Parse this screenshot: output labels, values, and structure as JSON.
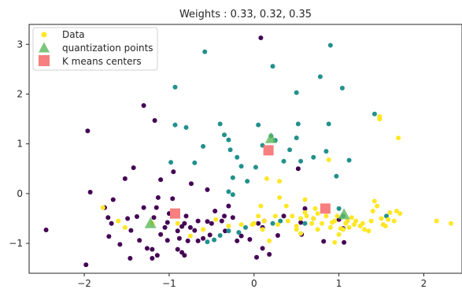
{
  "chart_data": {
    "type": "scatter",
    "title": "Weights : 0.33, 0.32, 0.35",
    "xlabel": "",
    "ylabel": "",
    "xlim": [
      -2.65,
      2.45
    ],
    "ylim": [
      -1.6,
      3.4
    ],
    "x_ticks": [
      -2,
      -1,
      0,
      1,
      2
    ],
    "x_tick_labels": [
      "−2",
      "−1",
      "0",
      "1",
      "2"
    ],
    "y_ticks": [
      -1,
      0,
      1,
      2,
      3
    ],
    "y_tick_labels": [
      "−1",
      "0",
      "1",
      "2",
      "3"
    ],
    "grid": false,
    "legend_position": "top-left",
    "colors": {
      "cluster_purple": "#440154",
      "cluster_teal": "#21918c",
      "cluster_yellow": "#fde725",
      "quantization": "#5cb85c",
      "kmeans": "#f77f7f",
      "axes": "#262626"
    },
    "series": [
      {
        "name": "Data",
        "marker": "circle",
        "groups": [
          {
            "color": "#440154",
            "points": [
              [
                -2.45,
                -0.73
              ],
              [
                -1.96,
                1.26
              ],
              [
                -1.98,
                -1.43
              ],
              [
                -1.93,
                0.03
              ],
              [
                -1.76,
                -0.28
              ],
              [
                -1.72,
                -0.48
              ],
              [
                -1.68,
                -0.6
              ],
              [
                -1.71,
                -0.86
              ],
              [
                -1.66,
                -0.12
              ],
              [
                -1.58,
                -1.02
              ],
              [
                -1.52,
                0.3
              ],
              [
                -1.49,
                -0.5
              ],
              [
                -1.45,
                -0.74
              ],
              [
                -1.42,
                0.52
              ],
              [
                -1.46,
                -1.3
              ],
              [
                -1.38,
                -0.46
              ],
              [
                -1.35,
                -0.94
              ],
              [
                -1.3,
                -0.28
              ],
              [
                -1.3,
                1.77
              ],
              [
                -1.2,
                -1.3
              ],
              [
                -1.26,
                -1.1
              ],
              [
                -1.2,
                -1.12
              ],
              [
                -1.18,
                -0.48
              ],
              [
                -1.15,
                -0.28
              ],
              [
                -1.14,
                -1.24
              ],
              [
                -1.17,
                1.47
              ],
              [
                -1.13,
                -0.08
              ],
              [
                -1.1,
                -0.82
              ],
              [
                -1.05,
                -0.68
              ],
              [
                -1.1,
                0.28
              ],
              [
                -1.02,
                -0.94
              ],
              [
                -1.0,
                -0.4
              ],
              [
                -1.02,
                -0.58
              ],
              [
                -0.96,
                -0.1
              ],
              [
                -0.95,
                0.44
              ],
              [
                -0.9,
                -0.75
              ],
              [
                -0.9,
                -1.12
              ],
              [
                -0.88,
                -0.9
              ],
              [
                -0.85,
                -1.18
              ],
              [
                -0.85,
                -0.66
              ],
              [
                -0.82,
                -1.24
              ],
              [
                -0.8,
                -0.45
              ],
              [
                -0.82,
                -0.6
              ],
              [
                -0.78,
                -0.95
              ],
              [
                -0.75,
                -0.68
              ],
              [
                -0.74,
                0.2
              ],
              [
                -0.7,
                -0.74
              ],
              [
                -0.66,
                -0.55
              ],
              [
                -0.66,
                -0.95
              ],
              [
                -0.6,
                -0.9
              ],
              [
                -0.55,
                -0.56
              ],
              [
                -0.52,
                -0.83
              ],
              [
                -0.5,
                -0.6
              ],
              [
                -0.55,
                0.08
              ],
              [
                -0.46,
                -0.35
              ],
              [
                -0.38,
                -0.55
              ],
              [
                -0.35,
                -0.45
              ],
              [
                -0.34,
                -0.75
              ],
              [
                -0.3,
                -0.25
              ],
              [
                -0.25,
                -0.48
              ],
              [
                -0.2,
                -0.95
              ],
              [
                -0.15,
                -0.85
              ],
              [
                -0.05,
                -0.92
              ],
              [
                0.05,
                -0.6
              ],
              [
                0.1,
                -0.68
              ],
              [
                0.12,
                -0.55
              ],
              [
                0.1,
                -1.1
              ],
              [
                0.03,
                -1.28
              ],
              [
                0.18,
                -1.22
              ],
              [
                0.28,
                -0.84
              ],
              [
                0.35,
                -0.45
              ],
              [
                0.52,
                0.5
              ],
              [
                0.55,
                -0.58
              ],
              [
                0.6,
                -0.3
              ],
              [
                0.56,
                -0.82
              ],
              [
                0.82,
                -0.96
              ],
              [
                1.0,
                -0.52
              ],
              [
                1.05,
                -0.7
              ],
              [
                1.06,
                -0.98
              ],
              [
                0.08,
                3.13
              ]
            ]
          },
          {
            "color": "#21918c",
            "points": [
              [
                -0.58,
                2.85
              ],
              [
                -0.93,
                2.14
              ],
              [
                -0.93,
                1.38
              ],
              [
                -0.8,
                1.33
              ],
              [
                -0.98,
                0.63
              ],
              [
                -0.7,
                0.62
              ],
              [
                -0.6,
                0.95
              ],
              [
                -0.4,
                1.4
              ],
              [
                -0.35,
                1.18
              ],
              [
                -0.3,
                1.08
              ],
              [
                -0.28,
                0.88
              ],
              [
                -0.2,
                0.73
              ],
              [
                -0.15,
                0.55
              ],
              [
                -0.25,
                0.32
              ],
              [
                -0.3,
                0.04
              ],
              [
                -0.25,
                -0.02
              ],
              [
                0.05,
                1.38
              ],
              [
                0.1,
                0.97
              ],
              [
                0.2,
                1.16
              ],
              [
                0.22,
                2.56
              ],
              [
                0.25,
                1.07
              ],
              [
                0.35,
                0.65
              ],
              [
                0.42,
                0.88
              ],
              [
                0.5,
                1.12
              ],
              [
                0.55,
                0.65
              ],
              [
                0.52,
                1.4
              ],
              [
                0.5,
                2.03
              ],
              [
                0.7,
                0.73
              ],
              [
                0.78,
                2.35
              ],
              [
                0.85,
                0.85
              ],
              [
                0.88,
                1.4
              ],
              [
                0.9,
                2.98
              ],
              [
                0.97,
                0.35
              ],
              [
                1.04,
                2.12
              ],
              [
                1.12,
                0.67
              ],
              [
                1.42,
                1.6
              ],
              [
                1.56,
                -0.45
              ],
              [
                -0.55,
                -0.97
              ],
              [
                -0.47,
                -0.93
              ],
              [
                -0.4,
                -0.84
              ],
              [
                -0.3,
                -0.75
              ],
              [
                -0.18,
                -0.78
              ],
              [
                -0.1,
                -0.68
              ],
              [
                -0.08,
                0.25
              ],
              [
                0.22,
                -0.6
              ],
              [
                0.31,
                -0.55
              ],
              [
                0.6,
                -0.6
              ],
              [
                0.7,
                -0.5
              ],
              [
                1.0,
                -0.3
              ],
              [
                1.05,
                -0.45
              ],
              [
                0.02,
                0.53
              ]
            ]
          },
          {
            "color": "#fde725",
            "points": [
              [
                -1.78,
                -0.28
              ],
              [
                -1.6,
                -0.55
              ],
              [
                -1.52,
                -0.68
              ],
              [
                -1.2,
                -0.6
              ],
              [
                -0.9,
                -0.6
              ],
              [
                -0.75,
                -0.85
              ],
              [
                -0.6,
                -0.72
              ],
              [
                -0.45,
                -0.52
              ],
              [
                -0.3,
                -0.65
              ],
              [
                -0.15,
                -0.62
              ],
              [
                0.0,
                -0.6
              ],
              [
                0.05,
                -0.45
              ],
              [
                0.08,
                -0.25
              ],
              [
                0.1,
                -0.72
              ],
              [
                0.12,
                -0.55
              ],
              [
                0.15,
                0.3
              ],
              [
                0.25,
                -0.45
              ],
              [
                0.28,
                -0.62
              ],
              [
                0.3,
                -0.08
              ],
              [
                0.38,
                -0.25
              ],
              [
                0.4,
                -0.55
              ],
              [
                0.45,
                -0.45
              ],
              [
                0.5,
                -0.72
              ],
              [
                0.55,
                -0.5
              ],
              [
                0.6,
                -0.38
              ],
              [
                0.62,
                -0.45
              ],
              [
                0.68,
                -0.6
              ],
              [
                0.7,
                -0.5
              ],
              [
                0.72,
                -0.3
              ],
              [
                0.75,
                -0.72
              ],
              [
                0.8,
                -0.6
              ],
              [
                0.85,
                -0.45
              ],
              [
                0.88,
                0.68
              ],
              [
                0.9,
                -0.68
              ],
              [
                0.92,
                -0.58
              ],
              [
                0.95,
                -0.55
              ],
              [
                0.98,
                -0.45
              ],
              [
                1.0,
                -0.82
              ],
              [
                1.02,
                -0.7
              ],
              [
                1.05,
                -0.72
              ],
              [
                1.08,
                -0.6
              ],
              [
                1.1,
                -0.55
              ],
              [
                1.12,
                -0.68
              ],
              [
                1.15,
                -0.48
              ],
              [
                1.18,
                -0.62
              ],
              [
                1.2,
                -0.55
              ],
              [
                1.25,
                -0.65
              ],
              [
                1.28,
                -0.6
              ],
              [
                1.3,
                -0.72
              ],
              [
                1.35,
                -0.75
              ],
              [
                1.38,
                -0.55
              ],
              [
                1.4,
                -0.35
              ],
              [
                1.42,
                -0.15
              ],
              [
                1.45,
                -0.25
              ],
              [
                1.48,
                1.5
              ],
              [
                1.5,
                -0.5
              ],
              [
                1.52,
                -0.62
              ],
              [
                1.55,
                -0.65
              ],
              [
                1.58,
                -0.52
              ],
              [
                1.6,
                -0.38
              ],
              [
                1.65,
                -0.55
              ],
              [
                1.68,
                -0.35
              ],
              [
                1.7,
                1.12
              ],
              [
                1.72,
                -0.4
              ],
              [
                2.15,
                -0.55
              ],
              [
                2.32,
                -0.6
              ],
              [
                1.48,
                1.55
              ],
              [
                0.18,
                -0.95
              ],
              [
                0.6,
                -0.12
              ],
              [
                0.3,
                0.25
              ],
              [
                0.5,
                -0.65
              ],
              [
                0.55,
                -0.8
              ],
              [
                0.95,
                -0.98
              ],
              [
                0.75,
                -0.4
              ],
              [
                -0.02,
                -0.62
              ]
            ]
          }
        ]
      },
      {
        "name": "quantization points",
        "marker": "triangle",
        "color": "#5cb85c",
        "points": [
          [
            -1.22,
            -0.6
          ],
          [
            0.2,
            1.11
          ],
          [
            1.06,
            -0.42
          ]
        ]
      },
      {
        "name": "K means centers",
        "marker": "square",
        "color": "#f77f7f",
        "points": [
          [
            -0.93,
            -0.4
          ],
          [
            0.17,
            0.87
          ],
          [
            0.84,
            -0.3
          ]
        ]
      }
    ]
  }
}
